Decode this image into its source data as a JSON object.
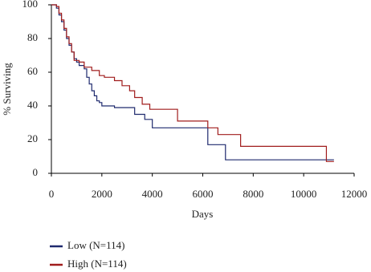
{
  "chart_data": {
    "type": "line",
    "step": true,
    "x_label": "Days",
    "y_label": "% Surviving",
    "xlim": [
      0,
      12000
    ],
    "xticks": [
      0,
      2000,
      4000,
      6000,
      8000,
      10000,
      12000
    ],
    "ylim": [
      0,
      100
    ],
    "yticks": [
      0,
      20,
      40,
      60,
      80,
      100
    ],
    "legend": "bottom-left",
    "series": [
      {
        "name": "Low (N=114)",
        "color": "#1f2a6e",
        "x": [
          0,
          200,
          300,
          400,
          500,
          600,
          700,
          800,
          900,
          1000,
          1100,
          1300,
          1400,
          1500,
          1600,
          1700,
          1800,
          1900,
          2000,
          2500,
          3300,
          3700,
          4000,
          6200,
          6900,
          11200
        ],
        "values": [
          100,
          98,
          94,
          90,
          85,
          80,
          76,
          72,
          68,
          66,
          64,
          62,
          57,
          53,
          49,
          46,
          43,
          42,
          40,
          39,
          35,
          32,
          27,
          17,
          8,
          8
        ]
      },
      {
        "name": "High (N=114)",
        "color": "#a01c1c",
        "x": [
          0,
          200,
          300,
          400,
          500,
          600,
          700,
          800,
          900,
          1100,
          1300,
          1600,
          1900,
          2100,
          2500,
          2800,
          3100,
          3300,
          3600,
          3900,
          5000,
          6200,
          6600,
          7500,
          10900,
          11200
        ],
        "values": [
          100,
          99,
          95,
          91,
          86,
          81,
          77,
          72,
          67,
          66,
          63,
          61,
          58,
          57,
          55,
          52,
          49,
          45,
          41,
          38,
          31,
          27,
          23,
          16,
          7,
          7
        ]
      }
    ]
  }
}
